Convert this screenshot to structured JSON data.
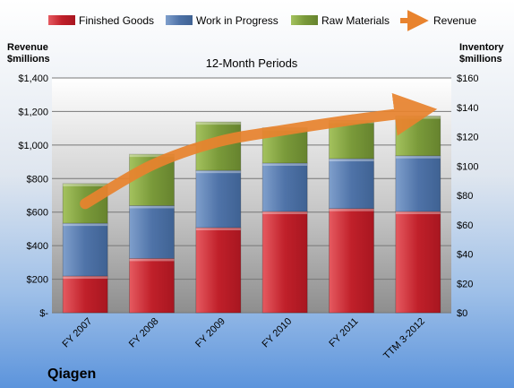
{
  "chart_data": {
    "type": "bar",
    "stacked": true,
    "title": "12-Month Periods",
    "company": "Qiagen",
    "left_axis": {
      "title_line1": "Revenue",
      "title_line2": "$millions",
      "range": [
        0,
        1400
      ],
      "ticks": [
        "$-",
        "$200",
        "$400",
        "$600",
        "$800",
        "$1,000",
        "$1,200",
        "$1,400"
      ],
      "tick_values": [
        0,
        200,
        400,
        600,
        800,
        1000,
        1200,
        1400
      ]
    },
    "right_axis": {
      "title_line1": "Inventory",
      "title_line2": "$millions",
      "range": [
        0,
        160
      ],
      "ticks": [
        "$0",
        "$20",
        "$40",
        "$60",
        "$80",
        "$100",
        "$120",
        "$140",
        "$160"
      ],
      "tick_values": [
        0,
        20,
        40,
        60,
        80,
        100,
        120,
        140,
        160
      ]
    },
    "categories": [
      "FY 2007",
      "FY 2008",
      "FY 2009",
      "FY 2010",
      "FY 2011",
      "TTM 3-2012"
    ],
    "series": [
      {
        "name": "Finished Goods",
        "axis": "right",
        "color": "#c0202a",
        "values": [
          25,
          37,
          58,
          69,
          71,
          69
        ]
      },
      {
        "name": "Work in Progress",
        "axis": "right",
        "color": "#4f73a8",
        "values": [
          36,
          36,
          39,
          33,
          34,
          38
        ]
      },
      {
        "name": "Raw Materials",
        "axis": "right",
        "color": "#7a9a3a",
        "values": [
          27,
          35,
          33,
          24,
          26,
          27
        ]
      },
      {
        "name": "Revenue",
        "axis": "left",
        "type": "line",
        "color": "#e8832e",
        "values": [
          650,
          880,
          1020,
          1090,
          1150,
          1200
        ]
      }
    ],
    "grid": true,
    "legend_position": "top"
  }
}
